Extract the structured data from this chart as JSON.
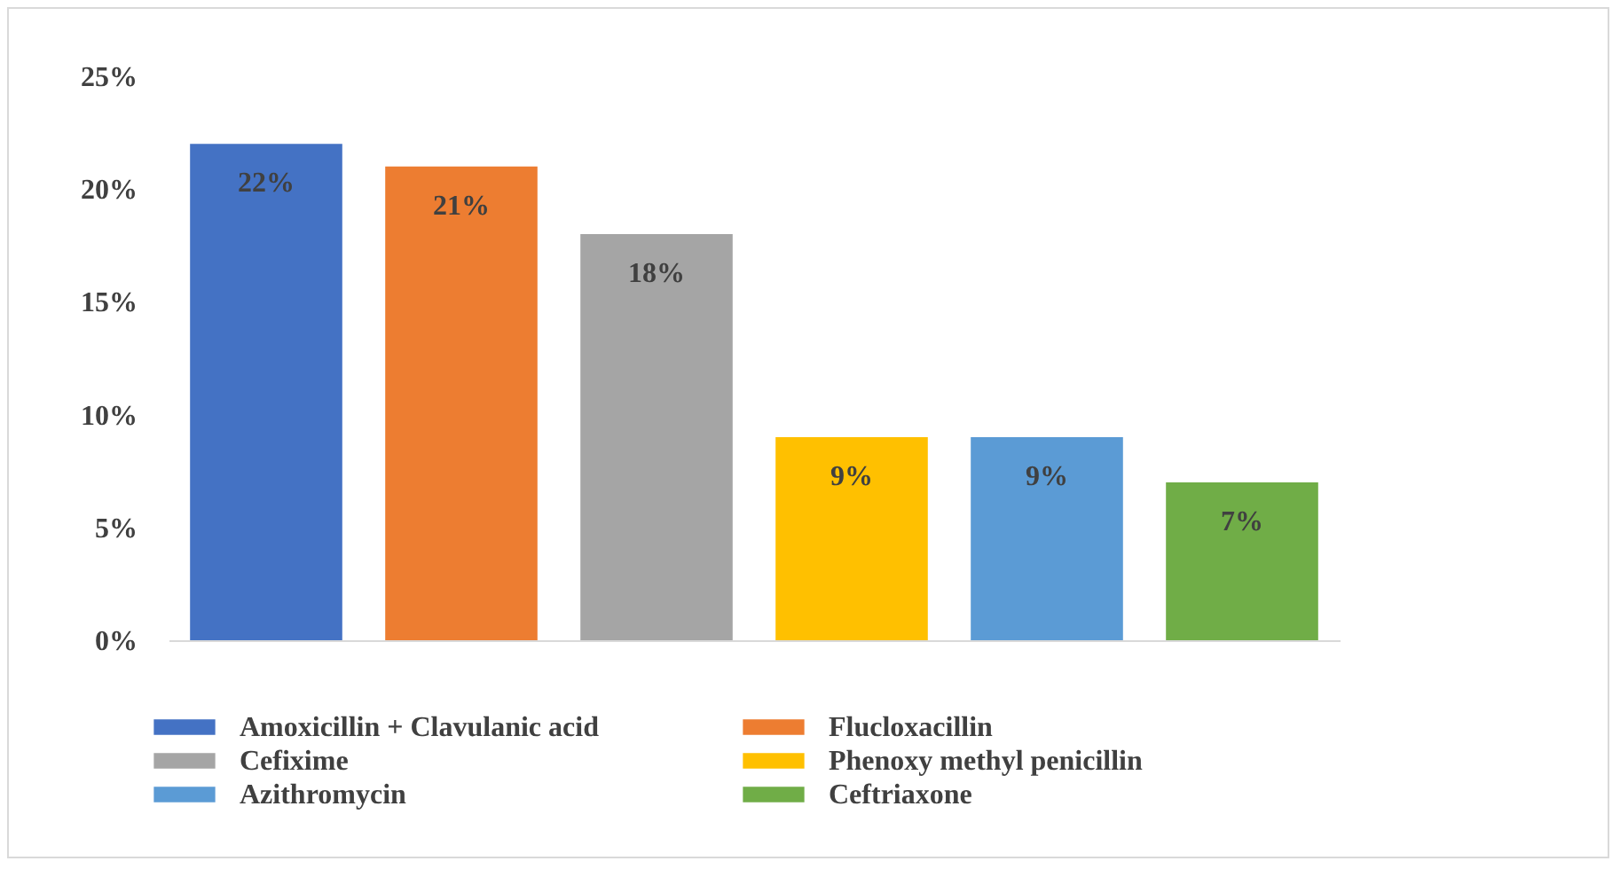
{
  "chart_data": {
    "type": "bar",
    "categories": [
      null,
      null,
      null,
      null,
      null,
      null
    ],
    "series": [
      {
        "name": "Amoxicillin + Clavulanic acid",
        "color": "#4472c4",
        "values": [
          22,
          null,
          null,
          null,
          null,
          null
        ],
        "value_labels": [
          "22%",
          null,
          null,
          null,
          null,
          null
        ]
      },
      {
        "name": "Flucloxacillin",
        "color": "#ed7d31",
        "values": [
          null,
          21,
          null,
          null,
          null,
          null
        ],
        "value_labels": [
          null,
          "21%",
          null,
          null,
          null,
          null
        ]
      },
      {
        "name": "Cefixime",
        "color": "#a5a5a5",
        "values": [
          null,
          null,
          18,
          null,
          null,
          null
        ],
        "value_labels": [
          null,
          null,
          "18%",
          null,
          null,
          null
        ]
      },
      {
        "name": "Phenoxy methyl penicillin",
        "color": "#ffc000",
        "values": [
          null,
          null,
          null,
          9,
          null,
          null
        ],
        "value_labels": [
          null,
          null,
          null,
          "9%",
          null,
          null
        ]
      },
      {
        "name": "Azithromycin",
        "color": "#5b9bd5",
        "values": [
          null,
          null,
          null,
          null,
          9,
          null
        ],
        "value_labels": [
          null,
          null,
          null,
          null,
          "9%",
          null
        ]
      },
      {
        "name": "Ceftriaxone",
        "color": "#70ad47",
        "values": [
          null,
          null,
          null,
          null,
          null,
          7
        ],
        "value_labels": [
          null,
          null,
          null,
          null,
          null,
          "7%"
        ]
      }
    ],
    "ylim": [
      0,
      25
    ],
    "yticks": [
      {
        "value": 0,
        "label": "0%"
      },
      {
        "value": 5,
        "label": "5%"
      },
      {
        "value": 10,
        "label": "10%"
      },
      {
        "value": 15,
        "label": "15%"
      },
      {
        "value": 20,
        "label": "20%"
      },
      {
        "value": 25,
        "label": "25%"
      }
    ],
    "grid": false,
    "legend": "bottom",
    "tick_labels": "y"
  }
}
